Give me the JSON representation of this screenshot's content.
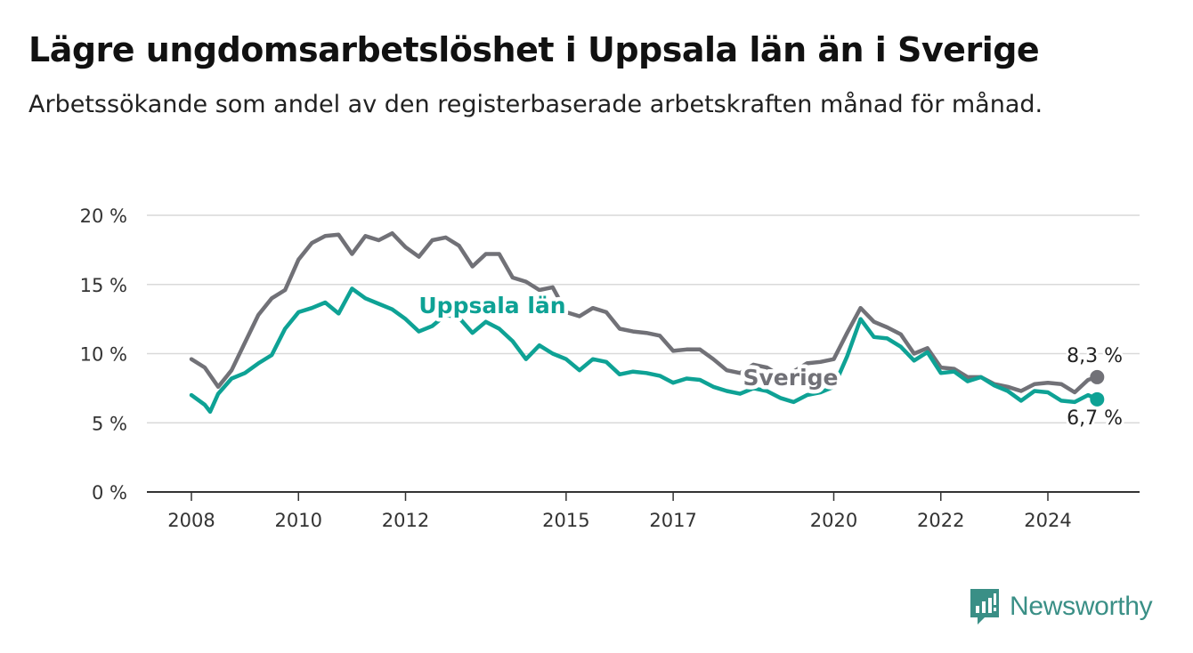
{
  "title": "Lägre ungdomsarbetslöshet i Uppsala län än i Sverige",
  "subtitle": "Arbetssökande som andel av den registerbaserade arbetskraften månad för månad.",
  "brand": {
    "name": "Newsworthy",
    "color": "#3a8f86",
    "icon": "newsworthy-logo-icon"
  },
  "colors": {
    "sverige": "#717177",
    "uppsala": "#0ea295",
    "grid": "#d9d9d9",
    "axis": "#333333"
  },
  "chart_data": {
    "type": "line",
    "title": "Lägre ungdomsarbetslöshet i Uppsala län än i Sverige",
    "xlabel": "",
    "ylabel": "",
    "ylim": [
      0,
      20
    ],
    "y_ticks": [
      0,
      5,
      10,
      15,
      20
    ],
    "y_tick_labels": [
      "0 %",
      "5 %",
      "10 %",
      "15 %",
      "20 %"
    ],
    "x_ticks": [
      2008,
      2010,
      2012,
      2015,
      2017,
      2020,
      2022,
      2024
    ],
    "x_tick_labels": [
      "2008",
      "2010",
      "2012",
      "2015",
      "2017",
      "2020",
      "2022",
      "2024"
    ],
    "grid": true,
    "series": [
      {
        "name": "Sverige",
        "end_label": "8,3 %",
        "points": [
          [
            2008.0,
            9.6
          ],
          [
            2008.25,
            9.0
          ],
          [
            2008.5,
            7.6
          ],
          [
            2008.75,
            8.8
          ],
          [
            2009.0,
            10.8
          ],
          [
            2009.25,
            12.8
          ],
          [
            2009.5,
            14.0
          ],
          [
            2009.75,
            14.6
          ],
          [
            2010.0,
            16.8
          ],
          [
            2010.25,
            18.0
          ],
          [
            2010.5,
            18.5
          ],
          [
            2010.75,
            18.6
          ],
          [
            2011.0,
            17.2
          ],
          [
            2011.25,
            18.5
          ],
          [
            2011.5,
            18.2
          ],
          [
            2011.75,
            18.7
          ],
          [
            2012.0,
            17.7
          ],
          [
            2012.25,
            17.0
          ],
          [
            2012.5,
            18.2
          ],
          [
            2012.75,
            18.4
          ],
          [
            2013.0,
            17.8
          ],
          [
            2013.25,
            16.3
          ],
          [
            2013.5,
            17.2
          ],
          [
            2013.75,
            17.2
          ],
          [
            2014.0,
            15.5
          ],
          [
            2014.25,
            15.2
          ],
          [
            2014.5,
            14.6
          ],
          [
            2014.75,
            14.8
          ],
          [
            2015.0,
            13.0
          ],
          [
            2015.25,
            12.7
          ],
          [
            2015.5,
            13.3
          ],
          [
            2015.75,
            13.0
          ],
          [
            2016.0,
            11.8
          ],
          [
            2016.25,
            11.6
          ],
          [
            2016.5,
            11.5
          ],
          [
            2016.75,
            11.3
          ],
          [
            2017.0,
            10.2
          ],
          [
            2017.25,
            10.3
          ],
          [
            2017.5,
            10.3
          ],
          [
            2017.75,
            9.6
          ],
          [
            2018.0,
            8.8
          ],
          [
            2018.25,
            8.6
          ],
          [
            2018.5,
            9.2
          ],
          [
            2018.75,
            9.0
          ],
          [
            2019.0,
            8.4
          ],
          [
            2019.25,
            8.7
          ],
          [
            2019.5,
            9.3
          ],
          [
            2019.75,
            9.4
          ],
          [
            2020.0,
            9.6
          ],
          [
            2020.25,
            11.5
          ],
          [
            2020.5,
            13.3
          ],
          [
            2020.75,
            12.3
          ],
          [
            2021.0,
            11.9
          ],
          [
            2021.25,
            11.4
          ],
          [
            2021.5,
            10.0
          ],
          [
            2021.75,
            10.4
          ],
          [
            2022.0,
            9.0
          ],
          [
            2022.25,
            8.9
          ],
          [
            2022.5,
            8.3
          ],
          [
            2022.75,
            8.3
          ],
          [
            2023.0,
            7.8
          ],
          [
            2023.25,
            7.6
          ],
          [
            2023.5,
            7.3
          ],
          [
            2023.75,
            7.8
          ],
          [
            2024.0,
            7.9
          ],
          [
            2024.25,
            7.8
          ],
          [
            2024.5,
            7.2
          ],
          [
            2024.75,
            8.1
          ],
          [
            2024.92,
            8.3
          ]
        ]
      },
      {
        "name": "Uppsala län",
        "end_label": "6,7 %",
        "points": [
          [
            2008.0,
            7.0
          ],
          [
            2008.25,
            6.3
          ],
          [
            2008.35,
            5.8
          ],
          [
            2008.5,
            7.1
          ],
          [
            2008.75,
            8.2
          ],
          [
            2009.0,
            8.6
          ],
          [
            2009.25,
            9.3
          ],
          [
            2009.5,
            9.9
          ],
          [
            2009.75,
            11.8
          ],
          [
            2010.0,
            13.0
          ],
          [
            2010.25,
            13.3
          ],
          [
            2010.5,
            13.7
          ],
          [
            2010.75,
            12.9
          ],
          [
            2011.0,
            14.7
          ],
          [
            2011.25,
            14.0
          ],
          [
            2011.5,
            13.6
          ],
          [
            2011.75,
            13.2
          ],
          [
            2012.0,
            12.5
          ],
          [
            2012.25,
            11.6
          ],
          [
            2012.5,
            12.0
          ],
          [
            2012.75,
            12.8
          ],
          [
            2013.0,
            12.6
          ],
          [
            2013.25,
            11.5
          ],
          [
            2013.5,
            12.3
          ],
          [
            2013.75,
            11.8
          ],
          [
            2014.0,
            10.9
          ],
          [
            2014.25,
            9.6
          ],
          [
            2014.5,
            10.6
          ],
          [
            2014.75,
            10.0
          ],
          [
            2015.0,
            9.6
          ],
          [
            2015.25,
            8.8
          ],
          [
            2015.5,
            9.6
          ],
          [
            2015.75,
            9.4
          ],
          [
            2016.0,
            8.5
          ],
          [
            2016.25,
            8.7
          ],
          [
            2016.5,
            8.6
          ],
          [
            2016.75,
            8.4
          ],
          [
            2017.0,
            7.9
          ],
          [
            2017.25,
            8.2
          ],
          [
            2017.5,
            8.1
          ],
          [
            2017.75,
            7.6
          ],
          [
            2018.0,
            7.3
          ],
          [
            2018.25,
            7.1
          ],
          [
            2018.5,
            7.5
          ],
          [
            2018.75,
            7.3
          ],
          [
            2019.0,
            6.8
          ],
          [
            2019.25,
            6.5
          ],
          [
            2019.5,
            7.0
          ],
          [
            2019.75,
            7.2
          ],
          [
            2020.0,
            7.6
          ],
          [
            2020.25,
            9.8
          ],
          [
            2020.5,
            12.5
          ],
          [
            2020.75,
            11.2
          ],
          [
            2021.0,
            11.1
          ],
          [
            2021.25,
            10.5
          ],
          [
            2021.5,
            9.5
          ],
          [
            2021.75,
            10.1
          ],
          [
            2022.0,
            8.6
          ],
          [
            2022.25,
            8.7
          ],
          [
            2022.5,
            8.0
          ],
          [
            2022.75,
            8.3
          ],
          [
            2023.0,
            7.7
          ],
          [
            2023.25,
            7.3
          ],
          [
            2023.5,
            6.6
          ],
          [
            2023.75,
            7.3
          ],
          [
            2024.0,
            7.2
          ],
          [
            2024.25,
            6.6
          ],
          [
            2024.5,
            6.5
          ],
          [
            2024.75,
            7.0
          ],
          [
            2024.92,
            6.7
          ]
        ]
      }
    ],
    "annotations": [
      {
        "text": "Uppsala län",
        "series": "Uppsala län"
      },
      {
        "text": "Sverige",
        "series": "Sverige"
      }
    ]
  }
}
